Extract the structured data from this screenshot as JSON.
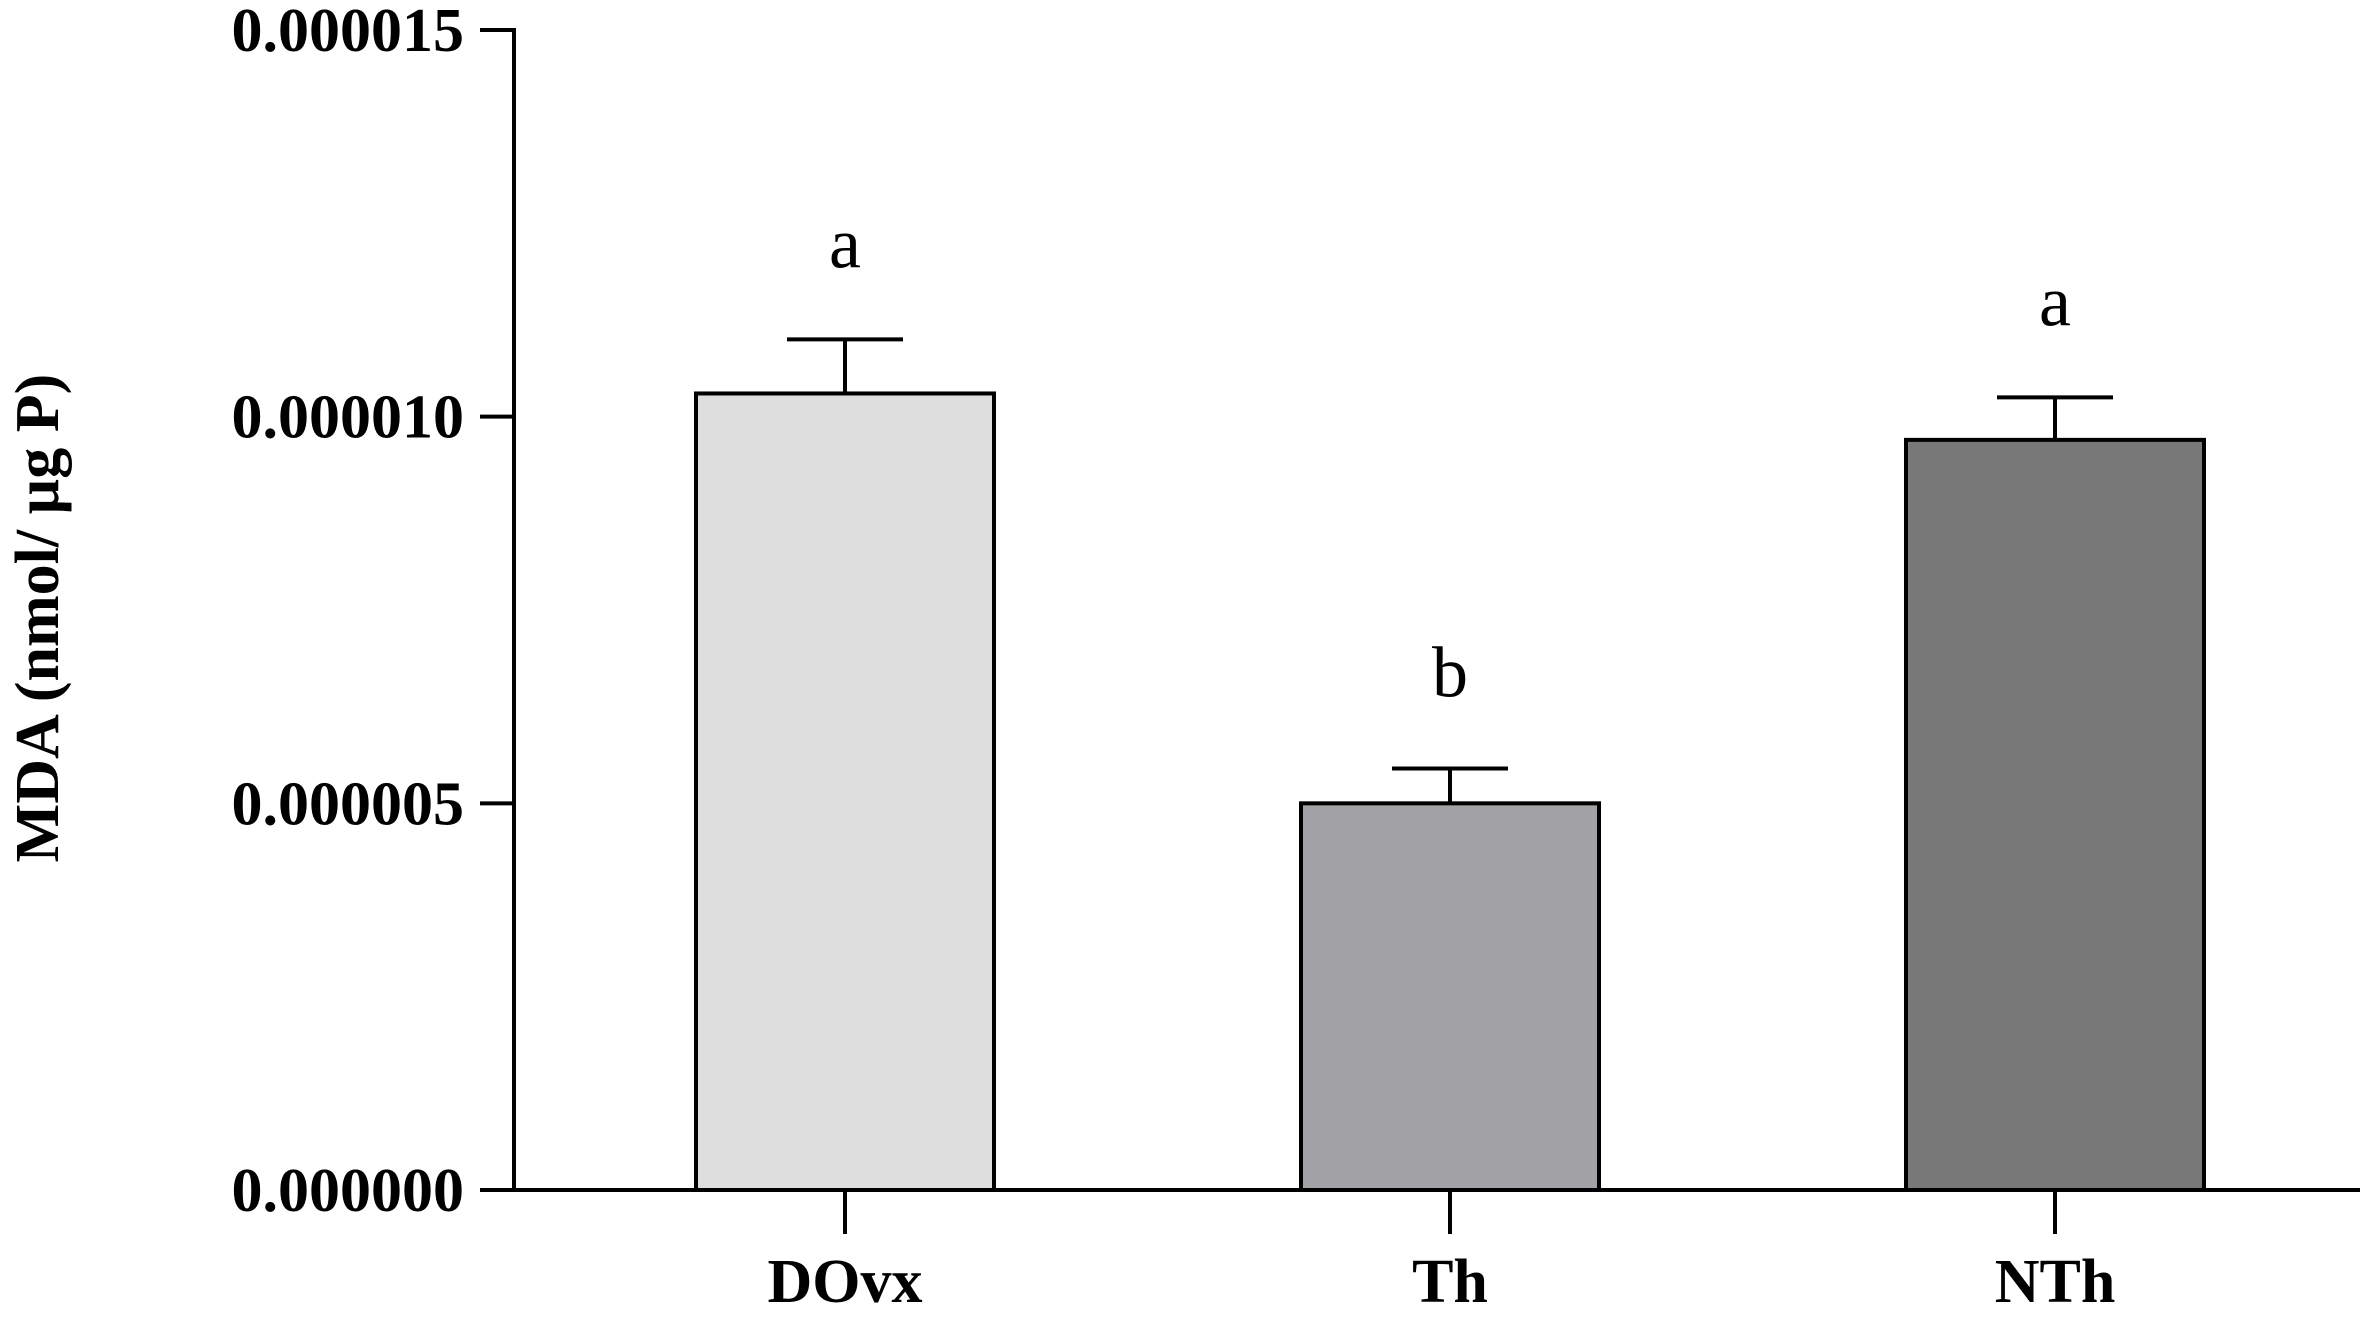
{
  "chart_data": {
    "type": "bar",
    "title": "",
    "xlabel": "",
    "ylabel": "MDA (nmol/ µg P)",
    "ylim": [
      0,
      1.5e-05
    ],
    "yticks": [
      0,
      5e-06,
      1e-05,
      1.5e-05
    ],
    "ytick_labels": [
      "0.000000",
      "0.000005",
      "0.000010",
      "0.000015"
    ],
    "categories": [
      "DOvx",
      "Th",
      "NTh"
    ],
    "values": [
      1.03e-05,
      5e-06,
      9.7e-06
    ],
    "errors": [
      7e-07,
      4.5e-07,
      5.5e-07
    ],
    "significance": [
      "a",
      "b",
      "a"
    ],
    "colors": [
      "#dedede",
      "#a3a2a6",
      "#787878"
    ],
    "grid": false,
    "legend": "none"
  }
}
